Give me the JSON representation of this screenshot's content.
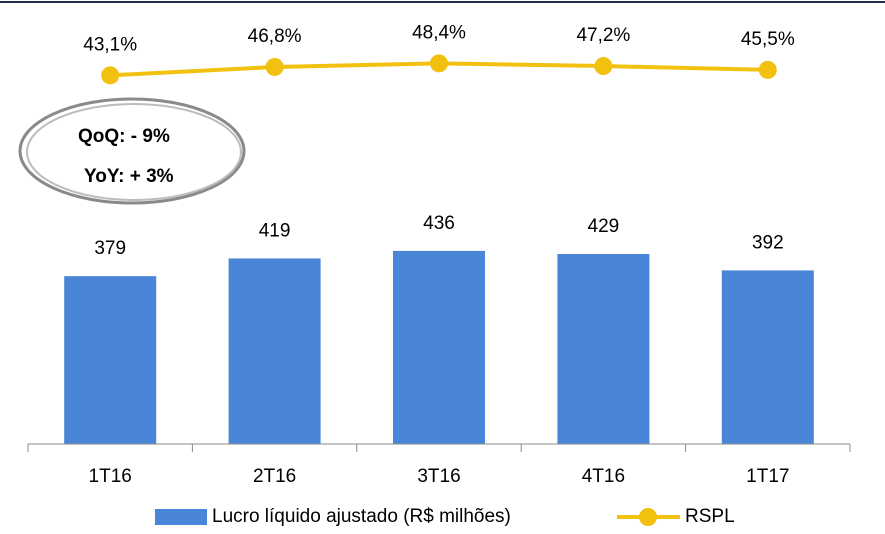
{
  "chart_data": {
    "type": "bar_line",
    "categories": [
      "1T16",
      "2T16",
      "3T16",
      "4T16",
      "1T17"
    ],
    "series": [
      {
        "name": "Lucro líquido ajustado (R$ milhões)",
        "type": "bar",
        "color": "#4a86d8",
        "values": [
          379,
          419,
          436,
          429,
          392
        ]
      },
      {
        "name": "RSPL",
        "type": "line",
        "axis": "y2",
        "color": "#f2c10f",
        "values": [
          43.1,
          46.8,
          48.4,
          47.2,
          45.5
        ],
        "value_labels": [
          "43,1%",
          "46,8%",
          "48,4%",
          "47,2%",
          "45,5%"
        ]
      }
    ],
    "ylim": [
      0,
      980
    ],
    "y2lim": [
      -120,
      72
    ],
    "annotations": [
      "QoQ: - 9%",
      "YoY: + 3%"
    ]
  }
}
